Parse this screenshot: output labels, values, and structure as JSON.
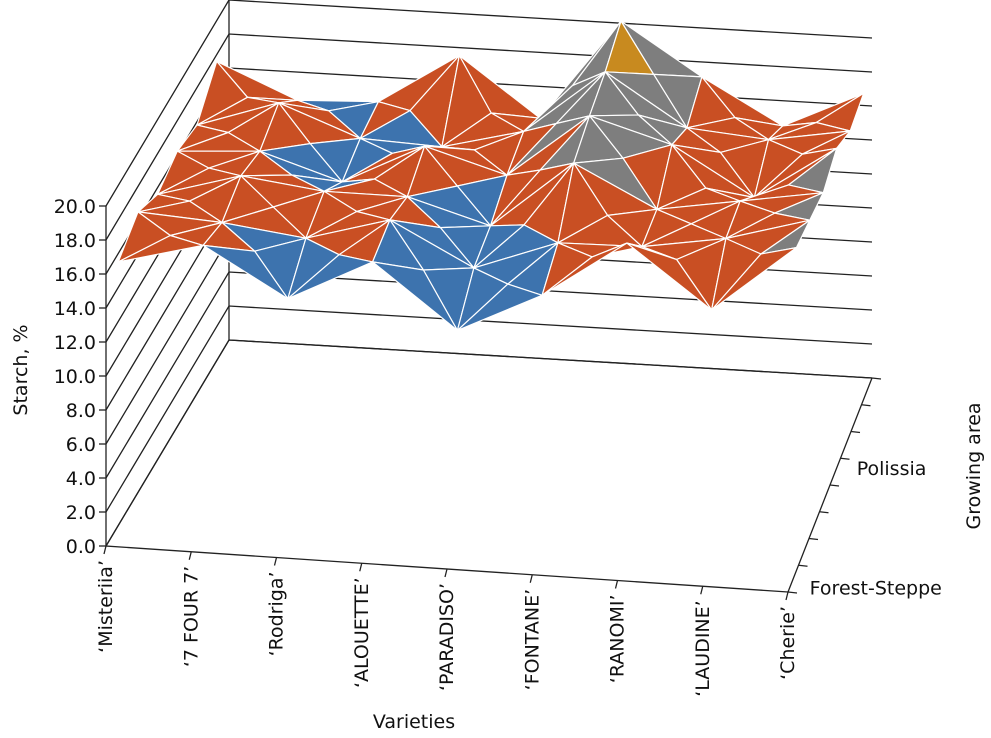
{
  "chart_data": {
    "type": "surface",
    "title": "",
    "ylabel": "Starch, %",
    "xlabel": "Varieties",
    "zlabel": "Growing area",
    "ylim": [
      0,
      20
    ],
    "y_ticks": [
      "0.0",
      "2.0",
      "4.0",
      "6.0",
      "8.0",
      "10.0",
      "12.0",
      "14.0",
      "16.0",
      "18.0",
      "20.0"
    ],
    "categories": [
      "‘Misteriia’",
      "‘7 FOUR 7’",
      "‘Rodriga’",
      "‘ALOUETTE’",
      "‘PARADISO’",
      "‘FONTANE’",
      "‘RANOMI’",
      "‘LAUDINE’",
      "‘Cherie’"
    ],
    "growing_areas": [
      "Forest-Steppe",
      "Polissia"
    ],
    "bands": [
      {
        "range": [
          12,
          14
        ],
        "color": "#8dc63f"
      },
      {
        "range": [
          14,
          16
        ],
        "color": "#3d73ae"
      },
      {
        "range": [
          16,
          18
        ],
        "color": "#c94f23"
      },
      {
        "range": [
          18,
          20
        ],
        "color": "#7e7e7e"
      },
      {
        "range": [
          20,
          22
        ],
        "color": "#c88a1f"
      }
    ],
    "rows": [
      {
        "area": "Forest-Steppe",
        "values": [
          15.5,
          16.8,
          14.0,
          16.5,
          12.8,
          15.2,
          18.6,
          15.0,
          19.0
        ]
      },
      {
        "area": "",
        "values": [
          16.5,
          16.2,
          15.6,
          17.0,
          14.5,
          16.3,
          16.4,
          17.2,
          18.6
        ]
      },
      {
        "area": "",
        "values": [
          15.6,
          17.0,
          16.4,
          16.4,
          15.0,
          19.0,
          16.6,
          17.4,
          18.2
        ]
      },
      {
        "area": "Polissia",
        "values": [
          16.2,
          16.5,
          15.0,
          17.4,
          16.0,
          19.8,
          18.4,
          15.6,
          18.8
        ]
      },
      {
        "area": "",
        "values": [
          15.8,
          17.4,
          15.6,
          15.4,
          16.6,
          20.4,
          17.4,
          17.0,
          17.8
        ]
      },
      {
        "area": "",
        "values": [
          17.6,
          15.6,
          15.8,
          18.8,
          15.4,
          21.4,
          18.4,
          15.8,
          18.0
        ]
      }
    ]
  }
}
